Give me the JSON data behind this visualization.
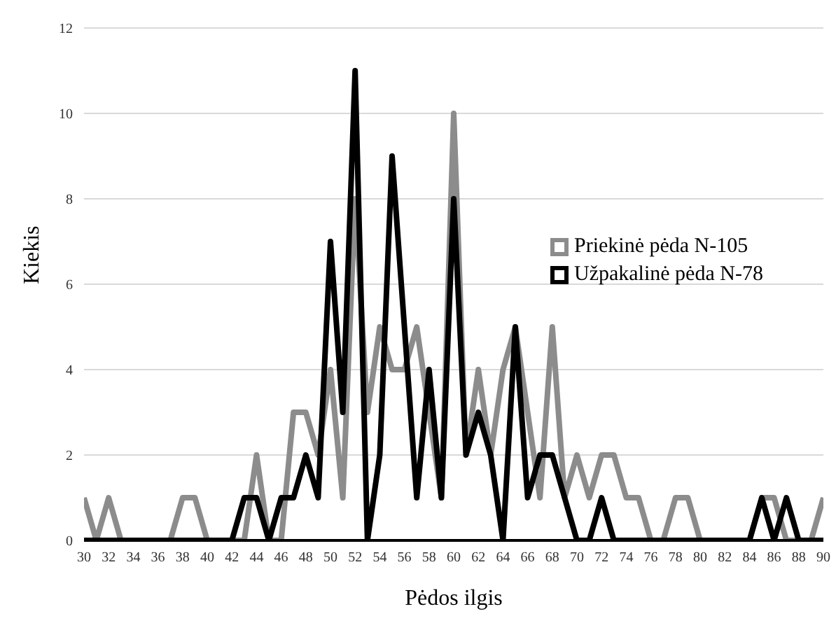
{
  "chart_data": {
    "type": "line",
    "xlabel": "Pėdos ilgis",
    "ylabel": "Kiekis",
    "x": [
      30,
      31,
      32,
      33,
      34,
      35,
      36,
      37,
      38,
      39,
      40,
      41,
      42,
      43,
      44,
      45,
      46,
      47,
      48,
      49,
      50,
      51,
      52,
      53,
      54,
      55,
      56,
      57,
      58,
      59,
      60,
      61,
      62,
      63,
      64,
      65,
      66,
      67,
      68,
      69,
      70,
      71,
      72,
      73,
      74,
      75,
      76,
      77,
      78,
      79,
      80,
      81,
      82,
      83,
      84,
      85,
      86,
      87,
      88,
      89,
      90
    ],
    "series": [
      {
        "name": "Priekinė pėda N-105",
        "color": "#8c8c8c",
        "values": [
          1,
          0,
          1,
          0,
          0,
          0,
          0,
          0,
          1,
          1,
          0,
          0,
          0,
          0,
          2,
          0,
          0,
          3,
          3,
          2,
          4,
          1,
          8,
          3,
          5,
          4,
          4,
          5,
          3,
          1,
          10,
          2,
          4,
          2,
          4,
          5,
          3,
          1,
          5,
          1,
          2,
          1,
          2,
          2,
          1,
          1,
          0,
          0,
          1,
          1,
          0,
          0,
          0,
          0,
          0,
          1,
          1,
          0,
          0,
          0,
          1
        ]
      },
      {
        "name": "Užpakalinė pėda N-78",
        "color": "#000000",
        "values": [
          0,
          0,
          0,
          0,
          0,
          0,
          0,
          0,
          0,
          0,
          0,
          0,
          0,
          1,
          1,
          0,
          1,
          1,
          2,
          1,
          7,
          3,
          11,
          0,
          2,
          9,
          5,
          1,
          4,
          1,
          8,
          2,
          3,
          2,
          0,
          5,
          1,
          2,
          2,
          1,
          0,
          0,
          1,
          0,
          0,
          0,
          0,
          0,
          0,
          0,
          0,
          0,
          0,
          0,
          0,
          1,
          0,
          1,
          0,
          0,
          0
        ]
      }
    ],
    "xlim": [
      30,
      90
    ],
    "xticks": [
      30,
      32,
      34,
      36,
      38,
      40,
      42,
      44,
      46,
      48,
      50,
      52,
      54,
      56,
      58,
      60,
      62,
      64,
      66,
      68,
      70,
      72,
      74,
      76,
      78,
      80,
      82,
      84,
      86,
      88,
      90
    ],
    "ylim": [
      0,
      12
    ],
    "yticks": [
      0,
      2,
      4,
      6,
      8,
      10,
      12
    ],
    "grid": "y",
    "legend": "right",
    "marker": "none",
    "line_style": "solid"
  }
}
